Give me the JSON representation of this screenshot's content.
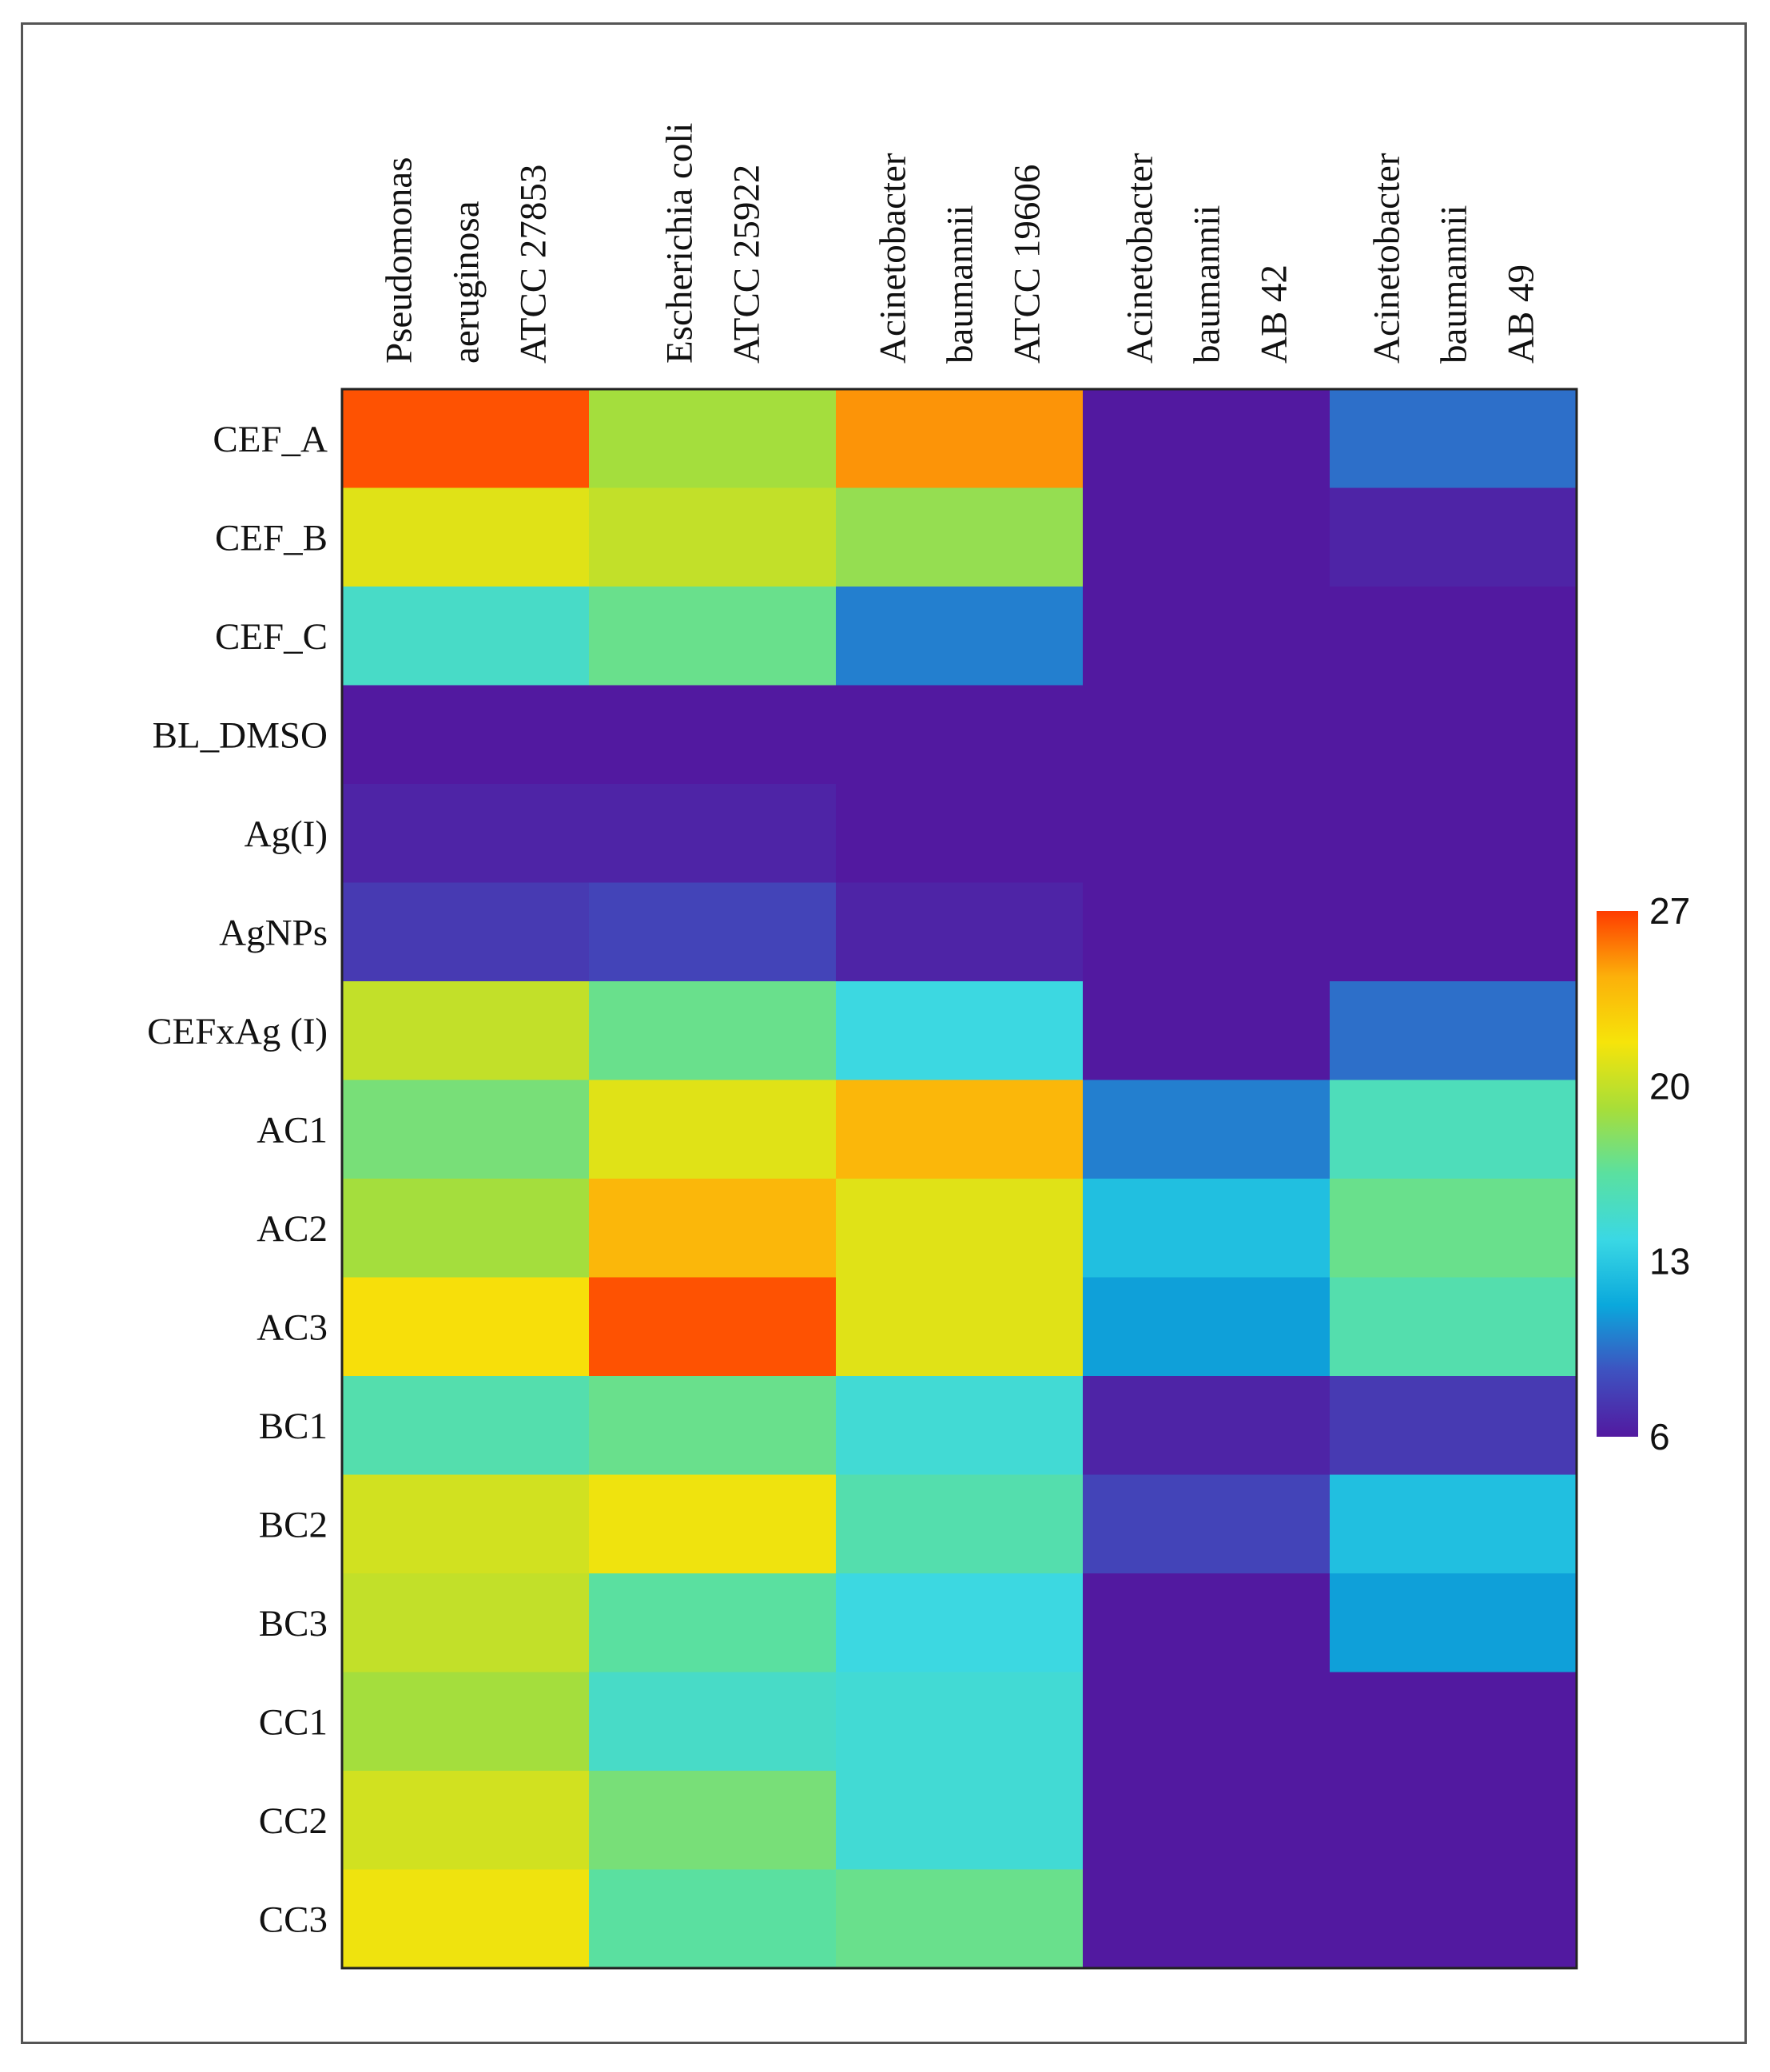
{
  "chart_data": {
    "type": "heatmap",
    "title": "",
    "columns": [
      [
        "Pseudomonas",
        "aeruginosa",
        "ATCC 27853"
      ],
      [
        "Escherichia coli",
        "ATCC 25922"
      ],
      [
        "Acinetobacter",
        "baumannii",
        "ATCC 19606"
      ],
      [
        "Acinetobacter",
        "baumannii",
        "AB 42"
      ],
      [
        "Acinetobacter",
        "baumannii",
        "AB 49"
      ]
    ],
    "rows": [
      "CEF_A",
      "CEF_B",
      "CEF_C",
      "BL_DMSO",
      "Ag(I)",
      "AgNPs",
      "CEFxAg (I)",
      "AC1",
      "AC2",
      "AC3",
      "BC1",
      "BC2",
      "BC3",
      "CC1",
      "CC2",
      "CC3"
    ],
    "values": [
      [
        26.5,
        19.0,
        25.0,
        6.0,
        9.5
      ],
      [
        21.0,
        20.0,
        18.5,
        6.0,
        6.5
      ],
      [
        15.0,
        17.0,
        10.0,
        6.0,
        6.0
      ],
      [
        6.0,
        6.0,
        6.0,
        6.0,
        6.0
      ],
      [
        6.5,
        6.5,
        6.0,
        6.0,
        6.0
      ],
      [
        7.5,
        8.0,
        6.5,
        6.0,
        6.0
      ],
      [
        20.0,
        17.0,
        14.0,
        6.0,
        9.5
      ],
      [
        17.5,
        21.0,
        24.0,
        10.0,
        15.5
      ],
      [
        19.0,
        24.0,
        21.0,
        12.5,
        17.0
      ],
      [
        22.0,
        26.5,
        21.0,
        11.0,
        16.0
      ],
      [
        16.0,
        17.0,
        14.5,
        6.5,
        7.5
      ],
      [
        20.5,
        21.5,
        16.0,
        8.0,
        12.5
      ],
      [
        20.0,
        16.5,
        14.0,
        6.0,
        11.0
      ],
      [
        19.0,
        15.0,
        14.5,
        6.0,
        6.0
      ],
      [
        20.5,
        17.5,
        14.5,
        6.0,
        6.0
      ],
      [
        21.5,
        16.5,
        17.0,
        6.0,
        6.0
      ]
    ],
    "colorbar": {
      "min": 6,
      "max": 27,
      "ticks": [
        27,
        20,
        13,
        6
      ]
    },
    "colormap": [
      "#5219a0",
      "#3e52c0",
      "#0aa8dc",
      "#3ad8e4",
      "#5ae0a0",
      "#a8de38",
      "#f6e40a",
      "#fcb00a",
      "#fe3c00"
    ]
  }
}
